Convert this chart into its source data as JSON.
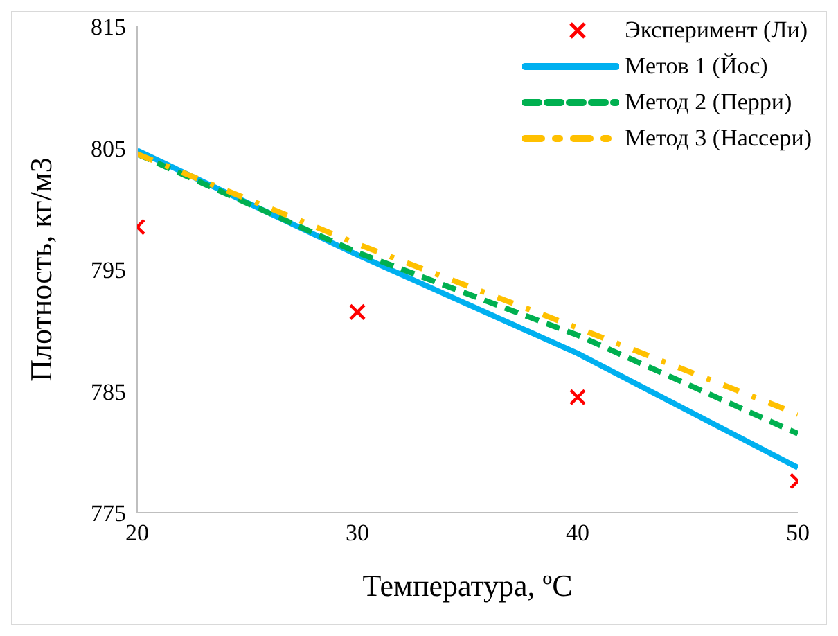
{
  "chart_data": {
    "type": "line",
    "xlabel": "Температура, ºC",
    "ylabel": "Плотность, кг/м3",
    "x": [
      20,
      30,
      40,
      50
    ],
    "series": [
      {
        "name": "Эксперимент (Ли)",
        "type": "scatter",
        "color": "#ff0000",
        "marker": "cross",
        "values": [
          798.5,
          791.5,
          784.5,
          777.6
        ]
      },
      {
        "name": "Метов 1 (Йос)",
        "color": "#00b0f0",
        "line_style": "solid",
        "marker": "none",
        "values": [
          804.8,
          796.2,
          788.1,
          778.7
        ]
      },
      {
        "name": "Метод 2 (Перри)",
        "color": "#00b050",
        "line_style": "dashed",
        "marker": "none",
        "values": [
          804.5,
          796.4,
          789.6,
          781.5
        ]
      },
      {
        "name": "Метод 3 (Нассери)",
        "color": "#ffc000",
        "line_style": "dashdot",
        "marker": "none",
        "values": [
          804.5,
          797.1,
          790.2,
          783.1
        ]
      }
    ],
    "xlim": [
      20,
      50
    ],
    "xticks": [
      20,
      30,
      40,
      50
    ],
    "ylim": [
      775,
      815
    ],
    "yticks": [
      775,
      785,
      795,
      805,
      815
    ],
    "grid": false,
    "legend": "top right"
  }
}
